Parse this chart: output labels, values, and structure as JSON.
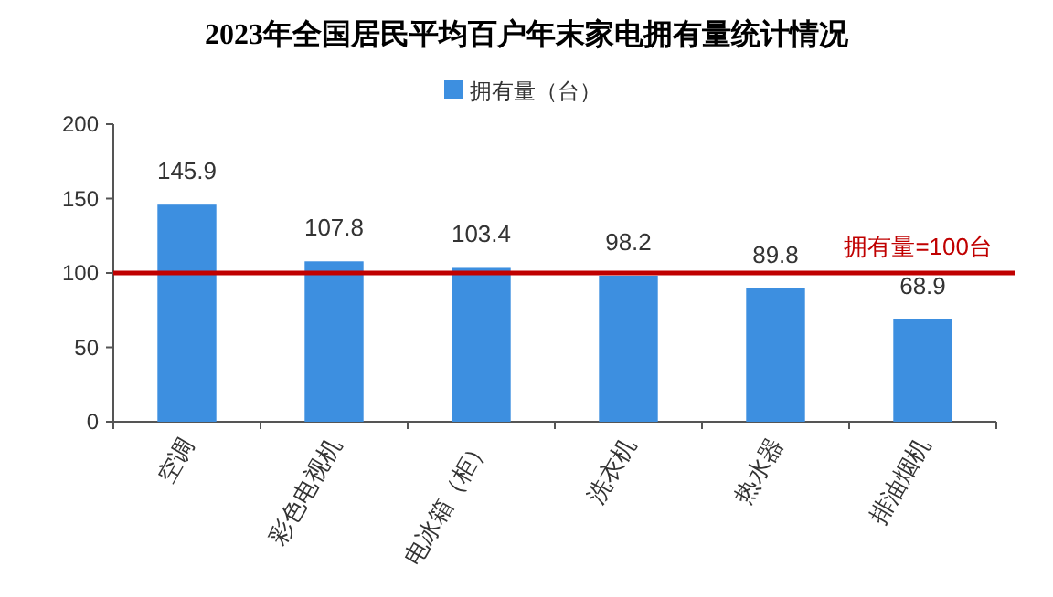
{
  "chart_data": {
    "type": "bar",
    "title": "2023年全国居民平均百户年末家电拥有量统计情况",
    "categories": [
      "空调",
      "彩色电视机",
      "电冰箱（柜）",
      "洗衣机",
      "热水器",
      "排油烟机"
    ],
    "series": [
      {
        "name": "拥有量（台）",
        "color": "#3d8fe0",
        "values": [
          145.9,
          107.8,
          103.4,
          98.2,
          89.8,
          68.9
        ]
      }
    ],
    "ylim": [
      0,
      200
    ],
    "yticks": [
      0,
      50,
      100,
      150,
      200
    ],
    "ref_lines": [
      {
        "axis": "y",
        "value": 100,
        "label": "拥有量=100台",
        "color": "#c00000"
      }
    ],
    "data_labels": true,
    "legend": "top"
  }
}
